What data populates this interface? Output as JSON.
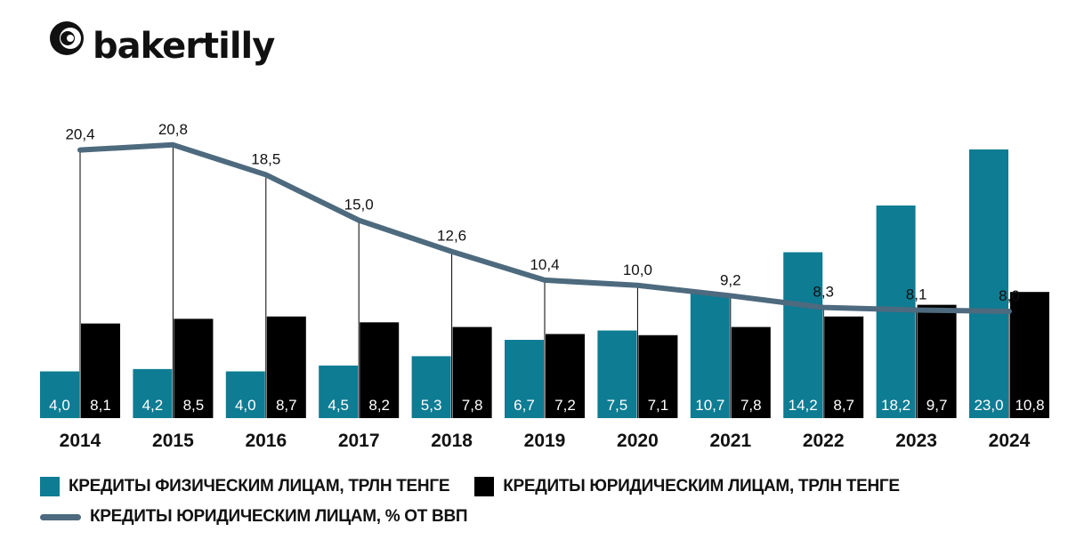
{
  "brand": {
    "name": "bakertilly"
  },
  "colors": {
    "individuals": "#0e7c93",
    "legal": "#000000",
    "gdp_line": "#4d6a7e",
    "grid": "#000000"
  },
  "chart_data": {
    "type": "bar",
    "categories": [
      "2014",
      "2015",
      "2016",
      "2017",
      "2018",
      "2019",
      "2020",
      "2021",
      "2022",
      "2023",
      "2024"
    ],
    "series": [
      {
        "name": "КРЕДИТЫ ФИЗИЧЕСКИМ ЛИЦАМ, ТРЛН ТЕНГЕ",
        "type": "bar",
        "values": [
          4.0,
          4.2,
          4.0,
          4.5,
          5.3,
          6.7,
          7.5,
          10.7,
          14.2,
          18.2,
          23.0
        ],
        "labels": [
          "4,0",
          "4,2",
          "4,0",
          "4,5",
          "5,3",
          "6,7",
          "7,5",
          "10,7",
          "14,2",
          "18,2",
          "23,0"
        ]
      },
      {
        "name": "КРЕДИТЫ ЮРИДИЧЕСКИМ ЛИЦАМ, ТРЛН ТЕНГЕ",
        "type": "bar",
        "values": [
          8.1,
          8.5,
          8.7,
          8.2,
          7.8,
          7.2,
          7.1,
          7.8,
          8.7,
          9.7,
          10.8
        ],
        "labels": [
          "8,1",
          "8,5",
          "8,7",
          "8,2",
          "7,8",
          "7,2",
          "7,1",
          "7,8",
          "8,7",
          "9,7",
          "10,8"
        ]
      },
      {
        "name": "КРЕДИТЫ ЮРИДИЧЕСКИМ ЛИЦАМ, % ОТ ВВП",
        "type": "line",
        "values": [
          20.4,
          20.8,
          18.5,
          15.0,
          12.6,
          10.4,
          10.0,
          9.2,
          8.3,
          8.1,
          8.0
        ],
        "labels": [
          "20,4",
          "20,8",
          "18,5",
          "15,0",
          "12,6",
          "10,4",
          "10,0",
          "9,2",
          "8,3",
          "8,1",
          "8,0"
        ]
      }
    ],
    "ylim_bars": [
      0,
      25
    ],
    "ylim_line": [
      0,
      30
    ],
    "grid": "vertical lines at categories",
    "legend_position": "bottom"
  }
}
